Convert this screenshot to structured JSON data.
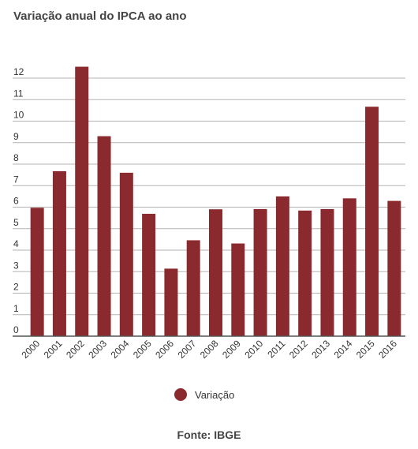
{
  "colors": {
    "bar": "#8b2a2e",
    "grid": "#b3b3b3",
    "axis": "#555555"
  },
  "chart_data": {
    "type": "bar",
    "title": "Variação anual do IPCA ao ano",
    "xlabel": "",
    "ylabel": "",
    "categories": [
      "2000",
      "2001",
      "2002",
      "2003",
      "2004",
      "2005",
      "2006",
      "2007",
      "2008",
      "2009",
      "2010",
      "2011",
      "2012",
      "2013",
      "2014",
      "2015",
      "2016"
    ],
    "series": [
      {
        "name": "Variação",
        "values": [
          5.97,
          7.67,
          12.53,
          9.3,
          7.6,
          5.69,
          3.14,
          4.46,
          5.9,
          4.31,
          5.91,
          6.5,
          5.84,
          5.91,
          6.41,
          10.67,
          6.29
        ]
      }
    ],
    "yticks": [
      0,
      1,
      2,
      3,
      4,
      5,
      6,
      7,
      8,
      9,
      10,
      11,
      12
    ],
    "ylim": [
      0,
      12.5
    ],
    "grid": true,
    "legend_position": "bottom"
  },
  "source_label": "Fonte: IBGE"
}
